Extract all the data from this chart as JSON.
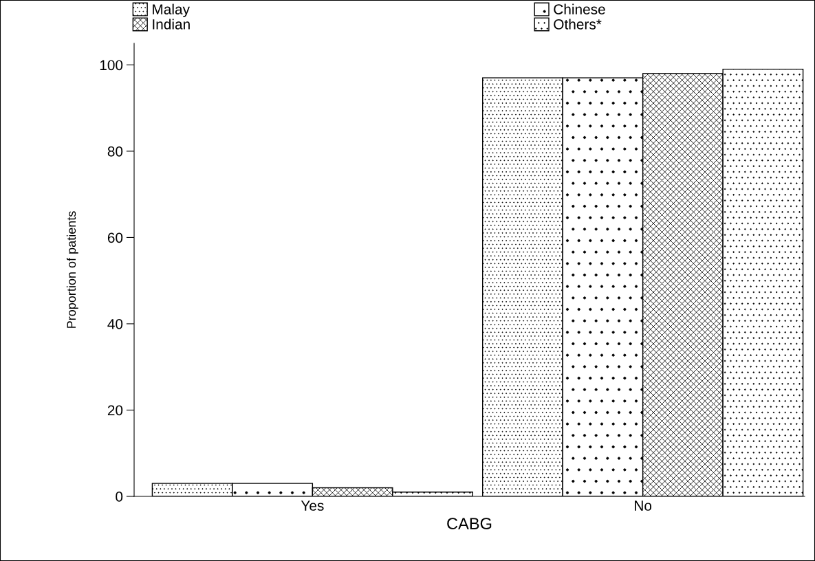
{
  "chart_data": {
    "type": "bar",
    "xlabel": "CABG",
    "ylabel": "Proportion of patients",
    "categories": [
      "Yes",
      "No"
    ],
    "series": [
      {
        "name": "Malay",
        "color": "#000000",
        "values": [
          3,
          97
        ]
      },
      {
        "name": "Chinese",
        "color": "#000000",
        "values": [
          3,
          97
        ]
      },
      {
        "name": "Indian",
        "color": "#000000",
        "values": [
          2,
          98
        ]
      },
      {
        "name": "Others*",
        "color": "#000000",
        "values": [
          1,
          99
        ]
      }
    ],
    "ylim": [
      0,
      105
    ],
    "yticks": [
      0,
      20,
      40,
      60,
      80,
      100
    ],
    "grid": false,
    "legend": "top"
  }
}
